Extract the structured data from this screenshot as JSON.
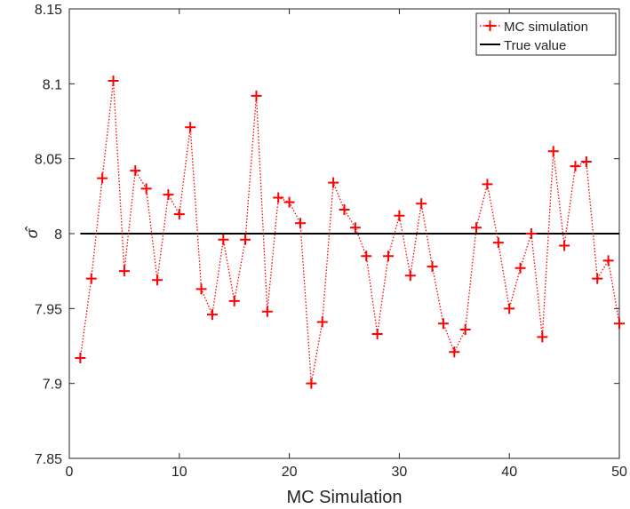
{
  "chart_data": {
    "type": "line",
    "xlabel": "MC Simulation",
    "ylabel": "σ̂",
    "xlim": [
      0,
      50
    ],
    "ylim": [
      7.85,
      8.15
    ],
    "xticks": [
      0,
      10,
      20,
      30,
      40,
      50
    ],
    "xtick_labels": [
      "0",
      "10",
      "20",
      "30",
      "40",
      "50"
    ],
    "yticks": [
      7.85,
      7.9,
      7.95,
      8,
      8.05,
      8.1,
      8.15
    ],
    "ytick_labels": [
      "7.85",
      "7.9",
      "7.95",
      "8",
      "8.05",
      "8.1",
      "8.15"
    ],
    "grid": false,
    "legend_position": "top-right",
    "series": [
      {
        "name": "MC simulation",
        "color": "#ff0000",
        "line_style": "dotted",
        "marker": "plus",
        "x": [
          1,
          2,
          3,
          4,
          5,
          6,
          7,
          8,
          9,
          10,
          11,
          12,
          13,
          14,
          15,
          16,
          17,
          18,
          19,
          20,
          21,
          22,
          23,
          24,
          25,
          26,
          27,
          28,
          29,
          30,
          31,
          32,
          33,
          34,
          35,
          36,
          37,
          38,
          39,
          40,
          41,
          42,
          43,
          44,
          45,
          46,
          47,
          48,
          49,
          50
        ],
        "values": [
          7.917,
          7.97,
          8.037,
          8.102,
          7.975,
          8.042,
          8.03,
          7.969,
          8.026,
          8.013,
          8.071,
          7.963,
          7.946,
          7.996,
          7.955,
          7.996,
          8.092,
          7.948,
          8.024,
          8.021,
          8.007,
          7.9,
          7.941,
          8.034,
          8.016,
          8.004,
          7.985,
          7.933,
          7.985,
          8.012,
          7.972,
          8.02,
          7.978,
          7.94,
          7.921,
          7.936,
          8.004,
          8.033,
          7.994,
          7.95,
          7.977,
          8.0,
          7.931,
          8.055,
          7.992,
          8.045,
          8.048,
          7.97,
          7.982,
          7.94
        ]
      },
      {
        "name": "True value",
        "color": "#000000",
        "line_style": "solid",
        "marker": "none",
        "x": [
          1,
          50
        ],
        "values": [
          8,
          8
        ]
      }
    ]
  }
}
